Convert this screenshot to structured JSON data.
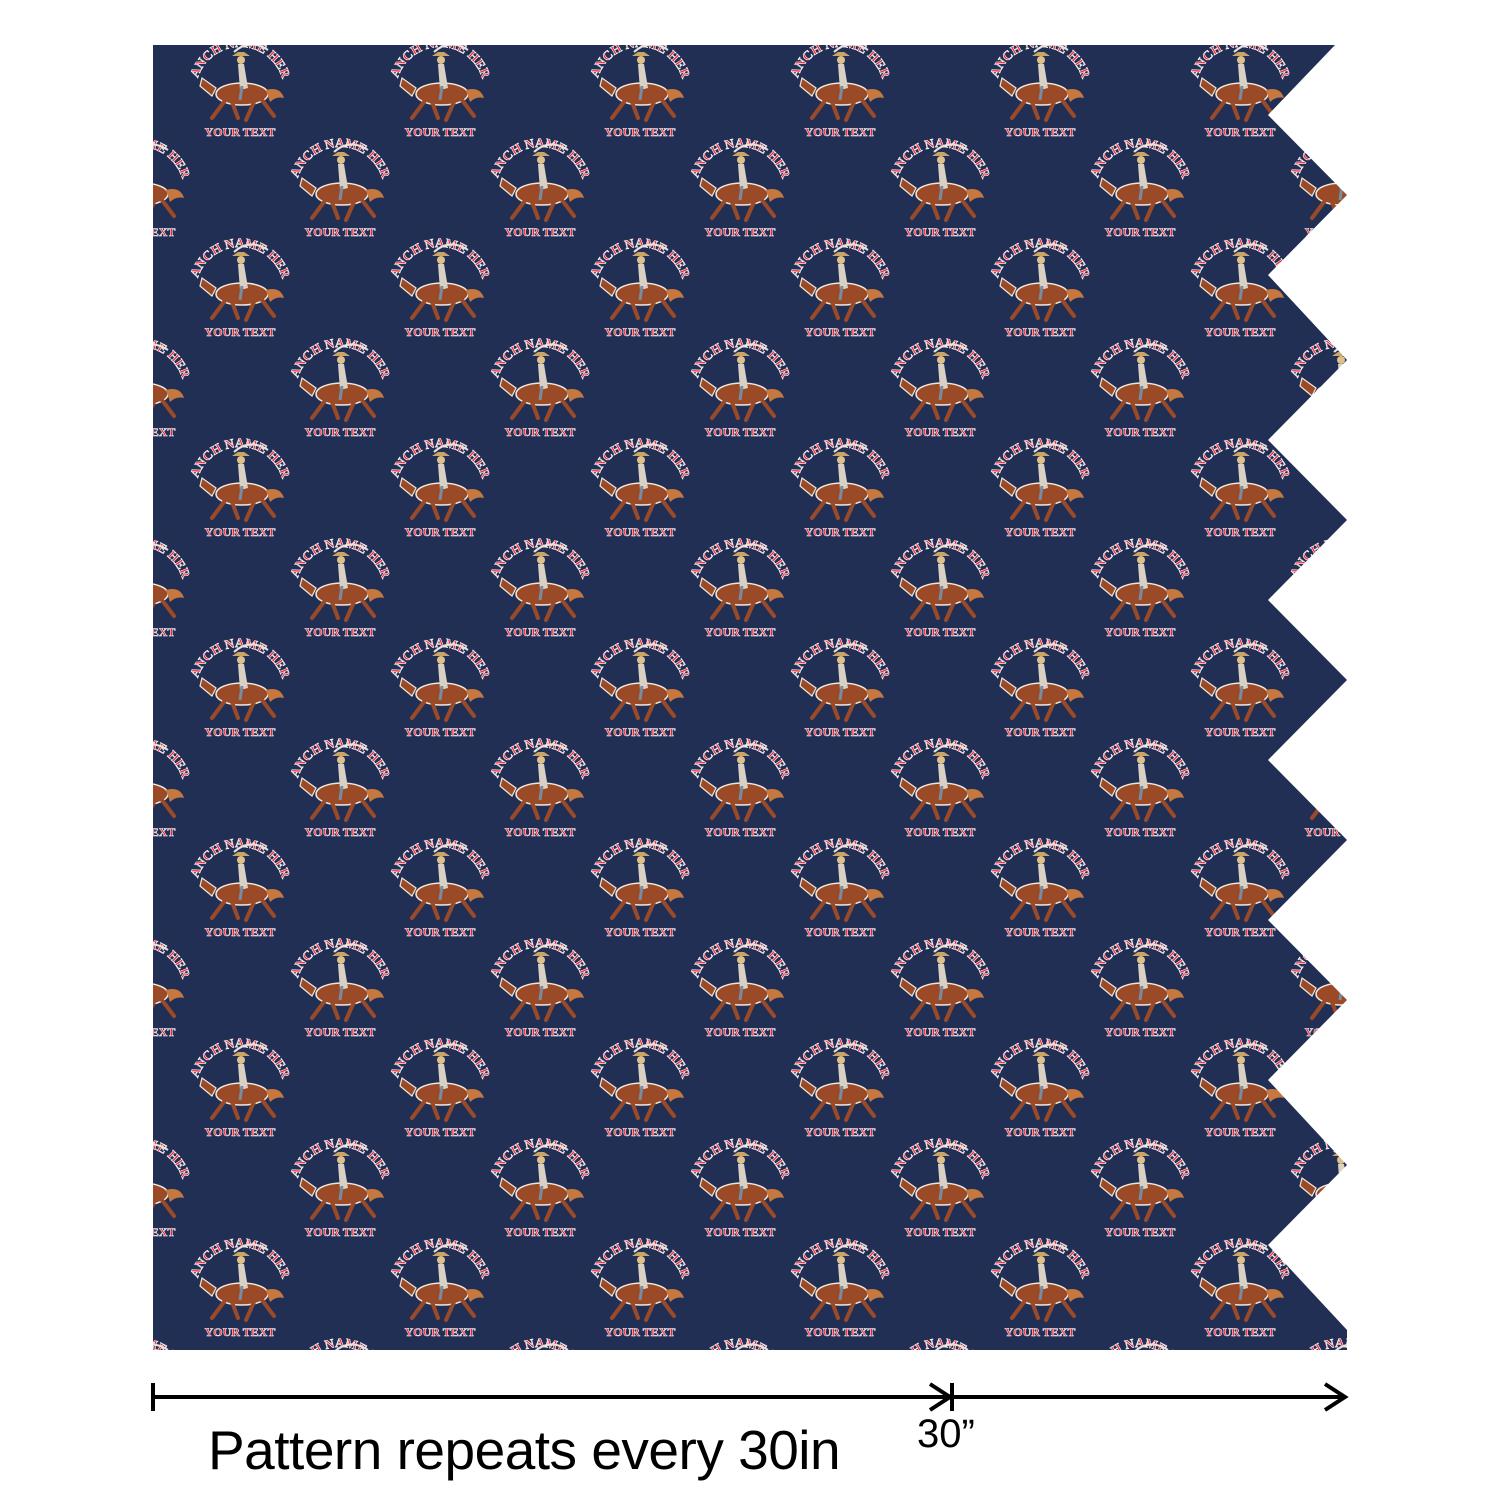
{
  "fabric": {
    "background_color": "#222f55",
    "motif": {
      "top_text": "RANCH NAME HERE",
      "bottom_text": "YOUR TEXT",
      "text_color": "#e8283a",
      "horse_color": "#9a4a26",
      "rider_color": "#d9d2c4"
    }
  },
  "ruler": {
    "caption": "Pattern repeats every 30in",
    "repeat_mark": "30”"
  }
}
